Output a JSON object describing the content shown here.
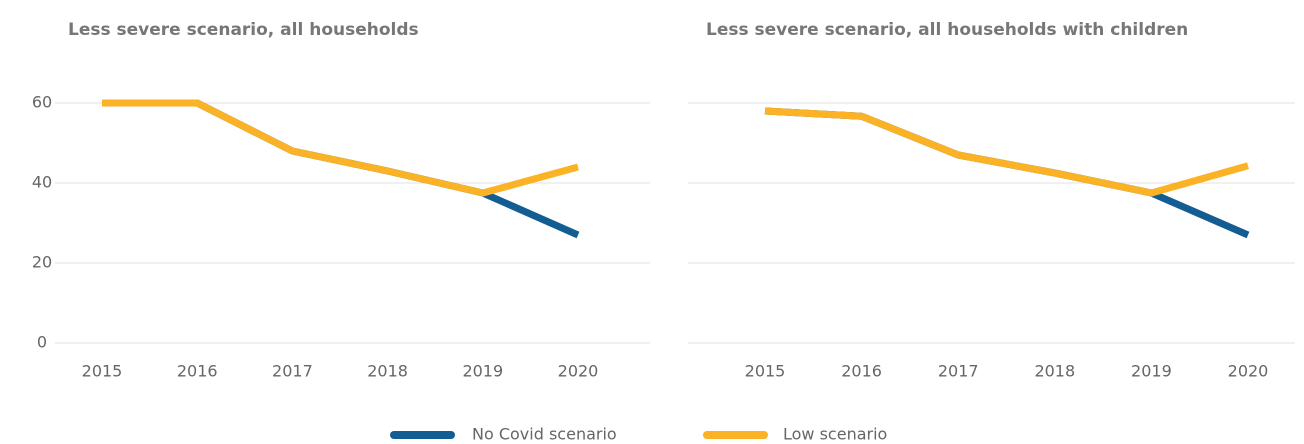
{
  "chart_data": [
    {
      "type": "line",
      "title": "Less severe scenario, all households",
      "categories": [
        "2015",
        "2016",
        "2017",
        "2018",
        "2019",
        "2020"
      ],
      "series": [
        {
          "name": "No Covid scenario",
          "color": "#135d92",
          "values": [
            60,
            60,
            48,
            43,
            37.5,
            27
          ]
        },
        {
          "name": "Low scenario",
          "color": "#fbb224",
          "values": [
            60,
            60,
            48,
            43,
            37.5,
            44
          ]
        }
      ],
      "ylim": [
        0,
        60
      ],
      "yticks": [
        0,
        20,
        40,
        60
      ],
      "grid": true,
      "show_y_labels": true,
      "legend": "bottom"
    },
    {
      "type": "line",
      "title": "Less severe scenario, all households with children",
      "categories": [
        "2015",
        "2016",
        "2017",
        "2018",
        "2019",
        "2020"
      ],
      "series": [
        {
          "color": "#135d92",
          "values": [
            58,
            56.7,
            47,
            42.5,
            37.5,
            27
          ]
        },
        {
          "color": "#fbb224",
          "values": [
            58,
            56.7,
            47,
            42.5,
            37.5,
            44.3
          ]
        }
      ],
      "ylim": [
        0,
        60
      ],
      "yticks": [
        0,
        20,
        40,
        60
      ],
      "grid": true,
      "show_y_labels": false
    }
  ]
}
